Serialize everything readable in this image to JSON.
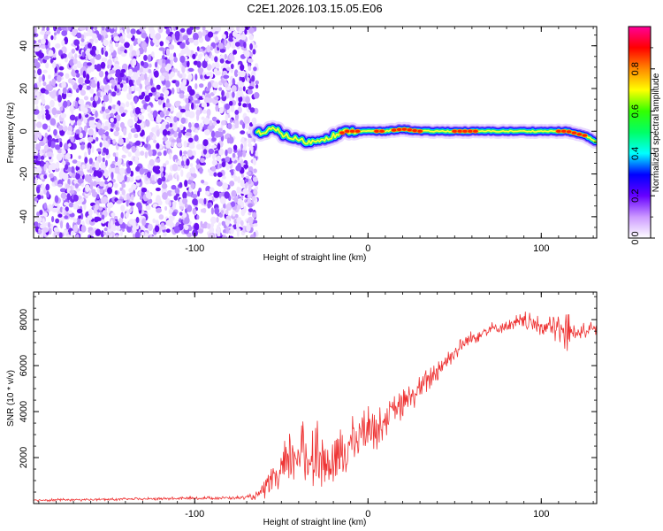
{
  "title": "C2E1.2026.103.15.05.E06",
  "chart_data": [
    {
      "type": "heatmap",
      "xlabel": "Height of straight line (km)",
      "ylabel": "Frequency (Hz)",
      "xlim": [
        -193,
        132
      ],
      "ylim": [
        -50,
        49
      ],
      "xticks": [
        -100,
        0,
        100
      ],
      "yticks": [
        -40,
        -20,
        0,
        20,
        40
      ],
      "noise_region_x": [
        -193,
        -64
      ],
      "ridge": {
        "x": [
          -64,
          -60,
          -56,
          -52,
          -48,
          -44,
          -40,
          -36,
          -32,
          -28,
          -24,
          -20,
          -16,
          -12,
          -8,
          -4,
          0,
          10,
          20,
          30,
          40,
          50,
          60,
          70,
          80,
          90,
          100,
          110,
          115,
          120,
          125,
          132
        ],
        "freq": [
          0,
          -1,
          1,
          0,
          -2,
          -3,
          -4,
          -5,
          -5,
          -4,
          -3,
          -2,
          -1,
          0,
          0,
          0,
          0,
          0,
          1,
          0,
          0,
          0,
          0,
          0,
          0,
          0,
          0,
          0,
          0,
          -1,
          -2,
          -5
        ],
        "peak_amplitude_zones": [
          [
            -15,
            -5
          ],
          [
            5,
            10
          ],
          [
            15,
            30
          ],
          [
            50,
            62
          ],
          [
            110,
            125
          ]
        ]
      },
      "colorbar": {
        "label": "Normalized spectral amplitude",
        "range": [
          0.0,
          1.0
        ],
        "ticks": [
          "0.0",
          "0.2",
          "0.4",
          "0.6",
          "0.8"
        ],
        "colors": [
          "#ffffff",
          "#cc99ff",
          "#6600ff",
          "#0000ff",
          "#00ffff",
          "#00ff66",
          "#33ff00",
          "#ffff00",
          "#ff8800",
          "#ff0000",
          "#ff0099"
        ]
      }
    },
    {
      "type": "line",
      "xlabel": "Height of straight line (km)",
      "ylabel": "SNR (10 * v/v)",
      "xlim": [
        -193,
        132
      ],
      "ylim": [
        0,
        9200
      ],
      "xticks": [
        -100,
        0,
        100
      ],
      "yticks": [
        2000,
        4000,
        6000,
        8000
      ],
      "color": "#ee3333",
      "envelope": {
        "x": [
          -193,
          -150,
          -100,
          -70,
          -64,
          -55,
          -48,
          -40,
          -35,
          -30,
          -25,
          -20,
          -15,
          -10,
          -5,
          0,
          5,
          10,
          20,
          30,
          40,
          50,
          60,
          70,
          80,
          90,
          100,
          110,
          115,
          120,
          132
        ],
        "mid": [
          150,
          180,
          230,
          260,
          350,
          900,
          1500,
          2300,
          1800,
          2400,
          1800,
          1500,
          2200,
          2600,
          3000,
          3400,
          3200,
          3700,
          4300,
          5000,
          5800,
          6600,
          7200,
          7600,
          7700,
          7900,
          7700,
          7600,
          7400,
          7500,
          7600
        ],
        "amp": [
          60,
          60,
          70,
          80,
          200,
          700,
          1300,
          1700,
          1400,
          1600,
          1200,
          1100,
          1300,
          1200,
          1100,
          900,
          900,
          800,
          700,
          600,
          500,
          400,
          350,
          300,
          300,
          500,
          400,
          700,
          1100,
          400,
          300
        ]
      }
    }
  ]
}
